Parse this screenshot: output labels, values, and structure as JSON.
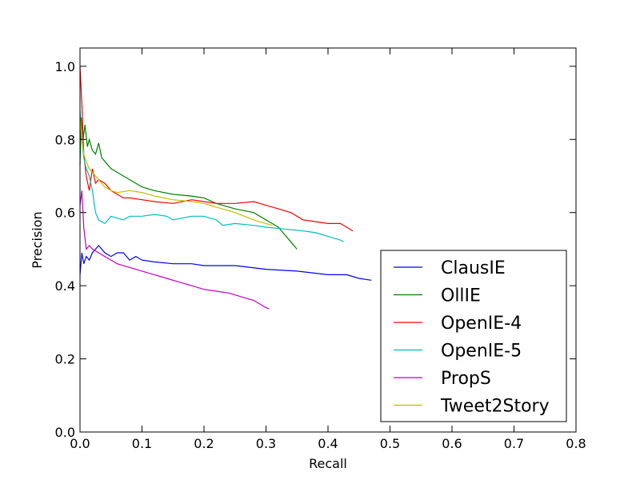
{
  "chart_data": {
    "type": "line",
    "xlabel": "Recall",
    "ylabel": "Precision",
    "xlim": [
      0.0,
      0.8
    ],
    "ylim": [
      0.0,
      1.05
    ],
    "xticks": [
      "0.0",
      "0.1",
      "0.2",
      "0.3",
      "0.4",
      "0.5",
      "0.6",
      "0.7",
      "0.8"
    ],
    "yticks": [
      "0.0",
      "0.2",
      "0.4",
      "0.6",
      "0.8",
      "1.0"
    ],
    "grid": false,
    "legend_position": "lower-right",
    "series": [
      {
        "name": "ClausIE",
        "color": "#0000ff",
        "points": [
          [
            0.0,
            0.43
          ],
          [
            0.003,
            0.49
          ],
          [
            0.006,
            0.46
          ],
          [
            0.01,
            0.48
          ],
          [
            0.015,
            0.47
          ],
          [
            0.02,
            0.49
          ],
          [
            0.025,
            0.5
          ],
          [
            0.03,
            0.51
          ],
          [
            0.04,
            0.49
          ],
          [
            0.05,
            0.48
          ],
          [
            0.06,
            0.49
          ],
          [
            0.07,
            0.49
          ],
          [
            0.08,
            0.47
          ],
          [
            0.09,
            0.48
          ],
          [
            0.1,
            0.47
          ],
          [
            0.12,
            0.465
          ],
          [
            0.15,
            0.46
          ],
          [
            0.18,
            0.46
          ],
          [
            0.2,
            0.455
          ],
          [
            0.25,
            0.455
          ],
          [
            0.3,
            0.445
          ],
          [
            0.35,
            0.44
          ],
          [
            0.4,
            0.43
          ],
          [
            0.43,
            0.43
          ],
          [
            0.45,
            0.42
          ],
          [
            0.47,
            0.415
          ]
        ]
      },
      {
        "name": "OllIE",
        "color": "#008000",
        "points": [
          [
            0.0,
            0.73
          ],
          [
            0.002,
            0.86
          ],
          [
            0.005,
            0.8
          ],
          [
            0.008,
            0.84
          ],
          [
            0.012,
            0.78
          ],
          [
            0.015,
            0.8
          ],
          [
            0.02,
            0.77
          ],
          [
            0.025,
            0.76
          ],
          [
            0.03,
            0.79
          ],
          [
            0.035,
            0.75
          ],
          [
            0.04,
            0.74
          ],
          [
            0.05,
            0.72
          ],
          [
            0.06,
            0.71
          ],
          [
            0.07,
            0.7
          ],
          [
            0.08,
            0.69
          ],
          [
            0.09,
            0.68
          ],
          [
            0.1,
            0.67
          ],
          [
            0.12,
            0.66
          ],
          [
            0.15,
            0.65
          ],
          [
            0.18,
            0.645
          ],
          [
            0.2,
            0.64
          ],
          [
            0.22,
            0.625
          ],
          [
            0.25,
            0.61
          ],
          [
            0.28,
            0.6
          ],
          [
            0.3,
            0.58
          ],
          [
            0.32,
            0.56
          ],
          [
            0.34,
            0.52
          ],
          [
            0.35,
            0.5
          ]
        ]
      },
      {
        "name": "OpenIE-4",
        "color": "#ff0000",
        "points": [
          [
            0.0,
            1.0
          ],
          [
            0.003,
            0.9
          ],
          [
            0.006,
            0.76
          ],
          [
            0.01,
            0.7
          ],
          [
            0.015,
            0.66
          ],
          [
            0.02,
            0.72
          ],
          [
            0.025,
            0.68
          ],
          [
            0.03,
            0.69
          ],
          [
            0.04,
            0.68
          ],
          [
            0.05,
            0.66
          ],
          [
            0.06,
            0.65
          ],
          [
            0.07,
            0.64
          ],
          [
            0.08,
            0.64
          ],
          [
            0.1,
            0.635
          ],
          [
            0.12,
            0.63
          ],
          [
            0.15,
            0.625
          ],
          [
            0.18,
            0.635
          ],
          [
            0.2,
            0.63
          ],
          [
            0.22,
            0.625
          ],
          [
            0.25,
            0.625
          ],
          [
            0.28,
            0.63
          ],
          [
            0.3,
            0.62
          ],
          [
            0.32,
            0.61
          ],
          [
            0.34,
            0.6
          ],
          [
            0.36,
            0.58
          ],
          [
            0.38,
            0.575
          ],
          [
            0.4,
            0.57
          ],
          [
            0.42,
            0.57
          ],
          [
            0.43,
            0.56
          ],
          [
            0.44,
            0.55
          ]
        ]
      },
      {
        "name": "OpenIE-5",
        "color": "#00bfbf",
        "points": [
          [
            0.0,
            0.88
          ],
          [
            0.003,
            0.8
          ],
          [
            0.006,
            0.75
          ],
          [
            0.01,
            0.72
          ],
          [
            0.015,
            0.7
          ],
          [
            0.02,
            0.66
          ],
          [
            0.025,
            0.6
          ],
          [
            0.03,
            0.58
          ],
          [
            0.04,
            0.57
          ],
          [
            0.05,
            0.59
          ],
          [
            0.06,
            0.585
          ],
          [
            0.07,
            0.58
          ],
          [
            0.08,
            0.59
          ],
          [
            0.1,
            0.59
          ],
          [
            0.12,
            0.595
          ],
          [
            0.14,
            0.59
          ],
          [
            0.15,
            0.58
          ],
          [
            0.18,
            0.59
          ],
          [
            0.2,
            0.59
          ],
          [
            0.22,
            0.58
          ],
          [
            0.23,
            0.565
          ],
          [
            0.25,
            0.57
          ],
          [
            0.28,
            0.565
          ],
          [
            0.3,
            0.56
          ],
          [
            0.33,
            0.555
          ],
          [
            0.36,
            0.55
          ],
          [
            0.38,
            0.545
          ],
          [
            0.4,
            0.535
          ],
          [
            0.42,
            0.525
          ],
          [
            0.425,
            0.52
          ]
        ]
      },
      {
        "name": "PropS",
        "color": "#bf00bf",
        "points": [
          [
            0.0,
            0.62
          ],
          [
            0.003,
            0.66
          ],
          [
            0.006,
            0.56
          ],
          [
            0.01,
            0.5
          ],
          [
            0.015,
            0.51
          ],
          [
            0.02,
            0.5
          ],
          [
            0.03,
            0.49
          ],
          [
            0.04,
            0.48
          ],
          [
            0.05,
            0.47
          ],
          [
            0.06,
            0.46
          ],
          [
            0.08,
            0.45
          ],
          [
            0.1,
            0.44
          ],
          [
            0.12,
            0.43
          ],
          [
            0.14,
            0.42
          ],
          [
            0.16,
            0.41
          ],
          [
            0.18,
            0.4
          ],
          [
            0.2,
            0.39
          ],
          [
            0.22,
            0.385
          ],
          [
            0.24,
            0.38
          ],
          [
            0.26,
            0.37
          ],
          [
            0.28,
            0.36
          ],
          [
            0.29,
            0.35
          ],
          [
            0.3,
            0.34
          ],
          [
            0.305,
            0.337
          ]
        ]
      },
      {
        "name": "Tweet2Story",
        "color": "#bfbf00",
        "points": [
          [
            0.0,
            0.86
          ],
          [
            0.003,
            0.8
          ],
          [
            0.006,
            0.76
          ],
          [
            0.01,
            0.74
          ],
          [
            0.015,
            0.72
          ],
          [
            0.02,
            0.71
          ],
          [
            0.025,
            0.7
          ],
          [
            0.03,
            0.69
          ],
          [
            0.04,
            0.67
          ],
          [
            0.05,
            0.66
          ],
          [
            0.06,
            0.655
          ],
          [
            0.08,
            0.66
          ],
          [
            0.1,
            0.655
          ],
          [
            0.12,
            0.645
          ],
          [
            0.15,
            0.635
          ],
          [
            0.18,
            0.63
          ],
          [
            0.2,
            0.625
          ],
          [
            0.22,
            0.615
          ],
          [
            0.25,
            0.6
          ],
          [
            0.28,
            0.58
          ],
          [
            0.3,
            0.57
          ],
          [
            0.31,
            0.565
          ]
        ]
      }
    ]
  }
}
